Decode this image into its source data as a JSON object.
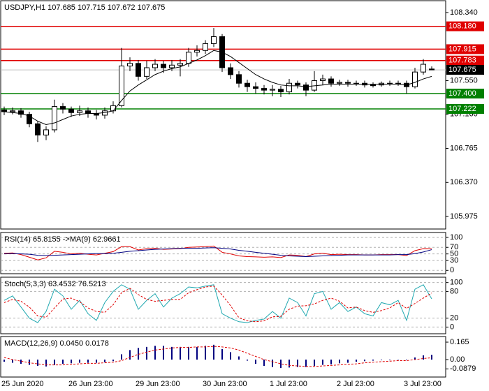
{
  "chart_data": [
    {
      "type": "candlestick",
      "title": "USDJPY,H1  107.685 107.715 107.672 107.675",
      "categories": [
        "25 Jun 2020",
        null,
        null,
        null,
        null,
        null,
        null,
        null,
        "26 Jun 23:00",
        null,
        null,
        null,
        null,
        null,
        null,
        null,
        "29 Jun 23:00",
        null,
        null,
        null,
        null,
        null,
        null,
        null,
        "30 Jun 23:00",
        null,
        null,
        null,
        null,
        null,
        null,
        null,
        "1 Jul 23:00",
        null,
        null,
        null,
        null,
        null,
        null,
        null,
        "2 Jul 23:00",
        null,
        null,
        null,
        null,
        null,
        null,
        null,
        "3 Jul 23:00",
        null,
        null,
        null
      ],
      "open": [
        107.21,
        107.19,
        107.2,
        107.16,
        107.05,
        106.92,
        106.98,
        107.25,
        107.22,
        107.18,
        107.2,
        107.17,
        107.15,
        107.2,
        107.26,
        107.72,
        107.75,
        107.6,
        107.7,
        107.74,
        107.7,
        107.73,
        107.75,
        107.88,
        107.9,
        107.98,
        108.06,
        107.7,
        107.62,
        107.52,
        107.48,
        107.46,
        107.44,
        107.45,
        107.42,
        107.52,
        107.5,
        107.44,
        107.55,
        107.57,
        107.52,
        107.53,
        107.52,
        107.52,
        107.5,
        107.5,
        107.52,
        107.52,
        107.52,
        107.48,
        107.65,
        107.685
      ],
      "high": [
        107.25,
        107.24,
        107.23,
        107.19,
        107.08,
        107.02,
        107.33,
        107.29,
        107.25,
        107.26,
        107.24,
        107.21,
        107.24,
        107.31,
        107.93,
        107.82,
        107.79,
        107.78,
        107.8,
        107.78,
        107.79,
        107.8,
        107.93,
        107.96,
        108.02,
        108.16,
        108.09,
        107.75,
        107.66,
        107.56,
        107.53,
        107.5,
        107.5,
        107.49,
        107.57,
        107.55,
        107.53,
        107.66,
        107.62,
        107.6,
        107.56,
        107.56,
        107.55,
        107.55,
        107.53,
        107.54,
        107.55,
        107.55,
        107.55,
        107.7,
        107.8,
        107.715
      ],
      "low": [
        107.15,
        107.16,
        107.12,
        107.01,
        106.84,
        106.86,
        106.95,
        107.17,
        107.13,
        107.14,
        107.12,
        107.1,
        107.11,
        107.17,
        107.24,
        107.66,
        107.55,
        107.57,
        107.66,
        107.64,
        107.66,
        107.6,
        107.71,
        107.83,
        107.86,
        107.94,
        107.65,
        107.57,
        107.47,
        107.42,
        107.4,
        107.39,
        107.37,
        107.36,
        107.39,
        107.46,
        107.37,
        107.42,
        107.5,
        107.48,
        107.49,
        107.48,
        107.49,
        107.47,
        107.47,
        107.48,
        107.49,
        107.49,
        107.4,
        107.46,
        107.62,
        107.672
      ],
      "close": [
        107.19,
        107.2,
        107.16,
        107.05,
        106.92,
        106.98,
        107.25,
        107.22,
        107.18,
        107.2,
        107.17,
        107.15,
        107.2,
        107.26,
        107.72,
        107.75,
        107.6,
        107.7,
        107.74,
        107.7,
        107.73,
        107.75,
        107.88,
        107.9,
        107.98,
        108.06,
        107.7,
        107.62,
        107.52,
        107.48,
        107.46,
        107.44,
        107.45,
        107.42,
        107.52,
        107.5,
        107.44,
        107.55,
        107.57,
        107.52,
        107.53,
        107.52,
        107.52,
        107.5,
        107.5,
        107.52,
        107.52,
        107.52,
        107.48,
        107.65,
        107.74,
        107.675
      ],
      "up_color": "#ffffff",
      "down_color": "#000000",
      "ma": {
        "color": "#000000",
        "values": [
          107.19,
          107.18,
          107.17,
          107.14,
          107.08,
          107.04,
          107.06,
          107.1,
          107.14,
          107.16,
          107.17,
          107.17,
          107.18,
          107.2,
          107.32,
          107.43,
          107.5,
          107.56,
          107.62,
          107.66,
          107.69,
          107.71,
          107.75,
          107.79,
          107.84,
          107.9,
          107.88,
          107.83,
          107.76,
          107.69,
          107.62,
          107.57,
          107.53,
          107.5,
          107.49,
          107.49,
          107.48,
          107.49,
          107.5,
          107.51,
          107.51,
          107.51,
          107.51,
          107.51,
          107.51,
          107.51,
          107.51,
          107.51,
          107.5,
          107.53,
          107.57,
          107.6
        ]
      },
      "ylim": [
        105.83,
        108.477
      ],
      "yticks": [
        {
          "value": 108.34,
          "label": "108.340"
        },
        {
          "value": 107.55,
          "label": "107.550"
        },
        {
          "value": 107.16,
          "label": "107.160"
        },
        {
          "value": 106.765,
          "label": "106.765"
        },
        {
          "value": 106.37,
          "label": "106.370"
        },
        {
          "value": 105.975,
          "label": "105.975"
        }
      ],
      "levels": [
        {
          "value": 108.18,
          "label": "108.180",
          "color": "#e00000"
        },
        {
          "value": 107.915,
          "label": "107.915",
          "color": "#e00000"
        },
        {
          "value": 107.783,
          "label": "107.783",
          "color": "#e00000"
        },
        {
          "value": 107.4,
          "label": "107.400",
          "color": "#008000"
        },
        {
          "value": 107.222,
          "label": "107.222",
          "color": "#008000"
        }
      ],
      "last": {
        "value": 107.675,
        "label": "107.675",
        "color": "#000000"
      }
    },
    {
      "type": "line",
      "title": "RSI(14) 65.8155  ->MA(9) 62.9661",
      "ylim": [
        -10,
        115
      ],
      "yticks": [
        100,
        70,
        50,
        30,
        0
      ],
      "grid": true,
      "series": [
        {
          "color": "#e00000",
          "values": [
            52,
            53,
            48,
            40,
            32,
            38,
            58,
            55,
            50,
            52,
            49,
            47,
            52,
            57,
            72,
            72,
            62,
            66,
            67,
            64,
            65,
            66,
            70,
            71,
            72,
            74,
            55,
            50,
            44,
            42,
            41,
            40,
            41,
            39,
            47,
            46,
            42,
            50,
            52,
            48,
            49,
            48,
            48,
            47,
            47,
            48,
            48,
            48,
            45,
            60,
            66,
            65.8
          ]
        },
        {
          "color": "#000080",
          "values": [
            50,
            51,
            50,
            49,
            46,
            45,
            46,
            47,
            48,
            49,
            50,
            51,
            51,
            52,
            55,
            58,
            60,
            62,
            64,
            65,
            66,
            67,
            67,
            67,
            68,
            69,
            67,
            65,
            61,
            58,
            55,
            52,
            49,
            46,
            44,
            43,
            42,
            43,
            44,
            45,
            46,
            47,
            47,
            47,
            47,
            47,
            47,
            48,
            48,
            51,
            56,
            62.97
          ]
        }
      ]
    },
    {
      "type": "line",
      "title": "Stoch(5,3,3) 63.4532 76.5213",
      "ylim": [
        -15,
        112
      ],
      "yticks": [
        100,
        80,
        20,
        0
      ],
      "grid": true,
      "series": [
        {
          "color": "#20a8b0",
          "values": [
            60,
            70,
            45,
            20,
            10,
            35,
            85,
            70,
            40,
            60,
            30,
            15,
            55,
            80,
            95,
            85,
            40,
            60,
            75,
            45,
            65,
            75,
            90,
            88,
            92,
            95,
            30,
            20,
            12,
            10,
            15,
            18,
            35,
            20,
            65,
            55,
            25,
            75,
            80,
            40,
            55,
            35,
            45,
            30,
            25,
            55,
            50,
            60,
            15,
            85,
            95,
            63.45
          ]
        },
        {
          "color": "#e00000",
          "dash": true,
          "values": [
            55,
            62,
            58,
            45,
            25,
            22,
            43,
            63,
            65,
            57,
            43,
            35,
            33,
            50,
            77,
            87,
            73,
            62,
            58,
            60,
            62,
            62,
            77,
            84,
            90,
            92,
            72,
            48,
            21,
            14,
            12,
            14,
            23,
            24,
            40,
            47,
            48,
            52,
            60,
            65,
            58,
            43,
            45,
            37,
            33,
            37,
            43,
            55,
            42,
            53,
            65,
            76.52
          ]
        }
      ]
    },
    {
      "type": "bar",
      "title": "MACD(12,26,9) 0.0450 0.0178",
      "ylim": [
        -0.165,
        0.218
      ],
      "yticks": [
        0.165,
        {
          "value": 0,
          "label": "0.00"
        },
        -0.0879
      ],
      "color": "#000080",
      "values": [
        -0.02,
        -0.03,
        -0.04,
        -0.05,
        -0.06,
        -0.065,
        -0.05,
        -0.04,
        -0.035,
        -0.03,
        -0.03,
        -0.03,
        -0.025,
        -0.015,
        0.05,
        0.09,
        0.11,
        0.12,
        0.13,
        0.13,
        0.12,
        0.12,
        0.12,
        0.12,
        0.13,
        0.14,
        0.1,
        0.07,
        0.03,
        -0.01,
        -0.04,
        -0.06,
        -0.07,
        -0.08,
        -0.075,
        -0.07,
        -0.07,
        -0.06,
        -0.05,
        -0.045,
        -0.035,
        -0.03,
        -0.02,
        -0.015,
        -0.01,
        -0.005,
        -0.005,
        0.0,
        -0.005,
        0.02,
        0.04,
        0.045
      ],
      "signal": {
        "color": "#e00000",
        "values": [
          0.02,
          0.0,
          -0.015,
          -0.03,
          -0.04,
          -0.05,
          -0.05,
          -0.05,
          -0.045,
          -0.04,
          -0.035,
          -0.035,
          -0.03,
          -0.025,
          -0.01,
          0.02,
          0.05,
          0.07,
          0.09,
          0.1,
          0.11,
          0.115,
          0.115,
          0.12,
          0.12,
          0.125,
          0.12,
          0.11,
          0.09,
          0.06,
          0.03,
          0.0,
          -0.02,
          -0.04,
          -0.055,
          -0.06,
          -0.065,
          -0.065,
          -0.06,
          -0.055,
          -0.05,
          -0.045,
          -0.04,
          -0.03,
          -0.025,
          -0.02,
          -0.015,
          -0.01,
          -0.01,
          0.0,
          0.01,
          0.0178
        ]
      }
    }
  ]
}
